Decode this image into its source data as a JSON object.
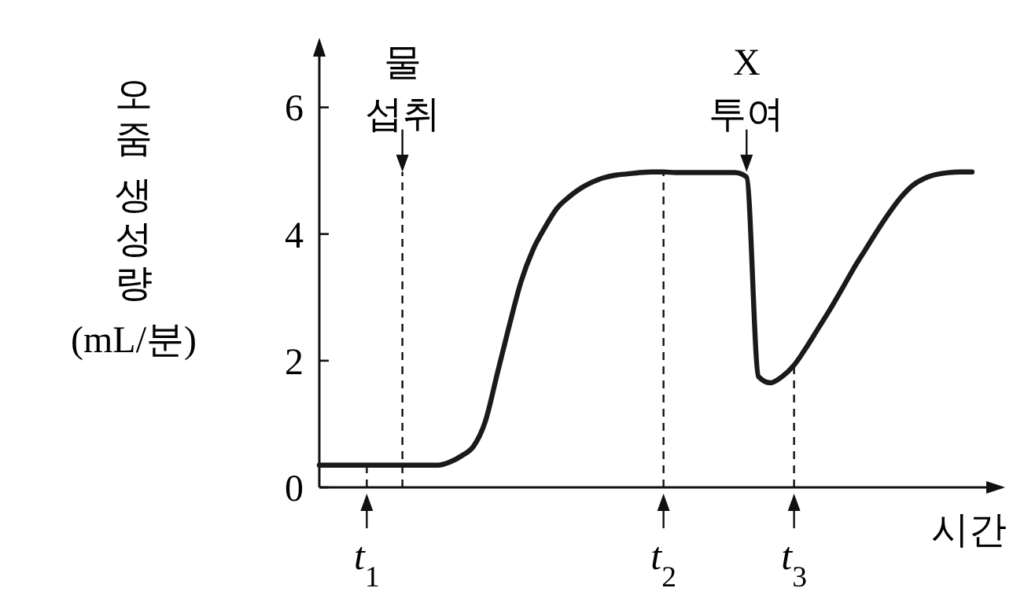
{
  "chart_data": {
    "type": "line",
    "xlabel": "시간",
    "ylabel": "오줌 생성량 (mL/분)",
    "categories": [
      null,
      null,
      null,
      null,
      "t$_{1}$",
      null,
      null,
      null,
      null,
      null,
      null,
      null,
      null,
      null,
      null,
      null,
      null,
      null,
      null,
      null,
      null,
      null,
      null,
      null,
      null,
      null,
      null,
      null,
      null,
      "t$_{2}$",
      null,
      null,
      null,
      null,
      null,
      null,
      null,
      null,
      null,
      null,
      "t$_{3}$",
      null,
      null,
      null,
      null,
      null,
      null,
      null,
      null,
      null,
      null,
      null,
      null,
      null,
      null,
      null
    ],
    "ylim": [
      0,
      7
    ],
    "yticks": [
      0,
      2,
      4,
      6
    ],
    "grid": "x",
    "marker": "none",
    "line_style": "solid",
    "series": [
      {
        "color": "#1a1a1a",
        "values": [
          0.35,
          0.35,
          0.35,
          0.35,
          0.35,
          0.35,
          0.35,
          0.35,
          0.35,
          0.35,
          0.35,
          0.4,
          0.5,
          0.65,
          1.05,
          1.8,
          2.55,
          3.25,
          3.75,
          4.1,
          4.4,
          4.58,
          4.72,
          4.82,
          4.89,
          4.93,
          4.95,
          4.97,
          4.98,
          4.98,
          4.97,
          4.97,
          4.97,
          4.97,
          4.97,
          4.97,
          4.9,
          1.75,
          1.65,
          1.75,
          1.93,
          2.2,
          2.5,
          2.8,
          3.12,
          3.45,
          3.75,
          4.05,
          4.33,
          4.58,
          4.77,
          4.88,
          4.94,
          4.97,
          4.98,
          4.98
        ]
      }
    ],
    "annotations": [
      "물 섭취",
      "X 투여"
    ]
  }
}
